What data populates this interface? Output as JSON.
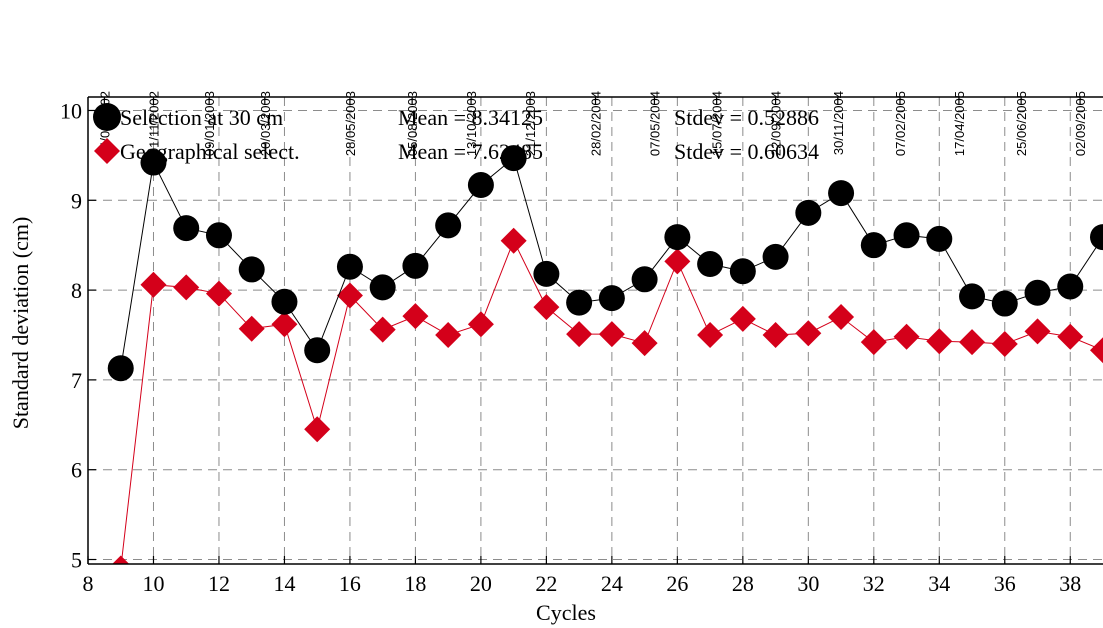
{
  "chart_data": {
    "type": "scatter",
    "xlabel": "Cycles",
    "ylabel": "Standard deviation (cm)",
    "xlim": [
      8,
      39
    ],
    "ylim": [
      4.95,
      10.15
    ],
    "x_ticks": [
      "8",
      "10",
      "12",
      "14",
      "16",
      "18",
      "20",
      "22",
      "24",
      "26",
      "28",
      "30",
      "32",
      "34",
      "36",
      "38"
    ],
    "y_ticks": [
      "5",
      "6",
      "7",
      "8",
      "9",
      "10"
    ],
    "grid": true,
    "top_axis": {
      "cycles": [
        8.5,
        10,
        11.7,
        13.4,
        16,
        17.9,
        19.7,
        21.5,
        23.5,
        25.3,
        27.2,
        29,
        30.9,
        32.8,
        34.6,
        36.5,
        38.3
      ],
      "labels": [
        "24/08/2002",
        "01/11/2002",
        "09/01/2003",
        "20/03/2003",
        "28/05/2003",
        "05/08/2003",
        "13/10/2003",
        "21/12/2003",
        "28/02/2004",
        "07/05/2004",
        "15/07/2004",
        "22/09/2004",
        "30/11/2004",
        "07/02/2005",
        "17/04/2005",
        "25/06/2005",
        "02/09/2005"
      ]
    },
    "series": [
      {
        "name": "Selection at 30 cm",
        "marker": "circle",
        "color": "#000000",
        "mean_label": "Mean = 8.34125",
        "stdev_label": "Stdev = 0.52886",
        "x": [
          9,
          10,
          11,
          12,
          13,
          14,
          15,
          16,
          17,
          18,
          19,
          20,
          21,
          22,
          23,
          24,
          25,
          26,
          27,
          28,
          29,
          30,
          31,
          32,
          33,
          34,
          35,
          36,
          37,
          38,
          39
        ],
        "y": [
          7.13,
          9.42,
          8.69,
          8.61,
          8.23,
          7.87,
          7.33,
          8.26,
          8.03,
          8.27,
          8.72,
          9.17,
          9.47,
          8.18,
          7.86,
          7.91,
          8.12,
          8.59,
          8.29,
          8.21,
          8.37,
          8.86,
          9.08,
          8.5,
          8.61,
          8.57,
          7.93,
          7.85,
          7.97,
          8.04,
          8.59
        ]
      },
      {
        "name": "Geographical select.",
        "marker": "diamond",
        "color": "#d4001a",
        "mean_label": "Mean = 7.62485",
        "stdev_label": "Stdev = 0.60634",
        "x": [
          9,
          10,
          11,
          12,
          13,
          14,
          15,
          16,
          17,
          18,
          19,
          20,
          21,
          22,
          23,
          24,
          25,
          26,
          27,
          28,
          29,
          30,
          31,
          32,
          33,
          34,
          35,
          36,
          37,
          38,
          39
        ],
        "y": [
          4.9,
          8.06,
          8.03,
          7.96,
          7.57,
          7.62,
          6.45,
          7.94,
          7.56,
          7.71,
          7.5,
          7.62,
          8.55,
          7.81,
          7.51,
          7.51,
          7.41,
          8.32,
          7.5,
          7.68,
          7.5,
          7.52,
          7.7,
          7.42,
          7.48,
          7.43,
          7.42,
          7.4,
          7.54,
          7.48,
          7.33
        ]
      }
    ]
  }
}
